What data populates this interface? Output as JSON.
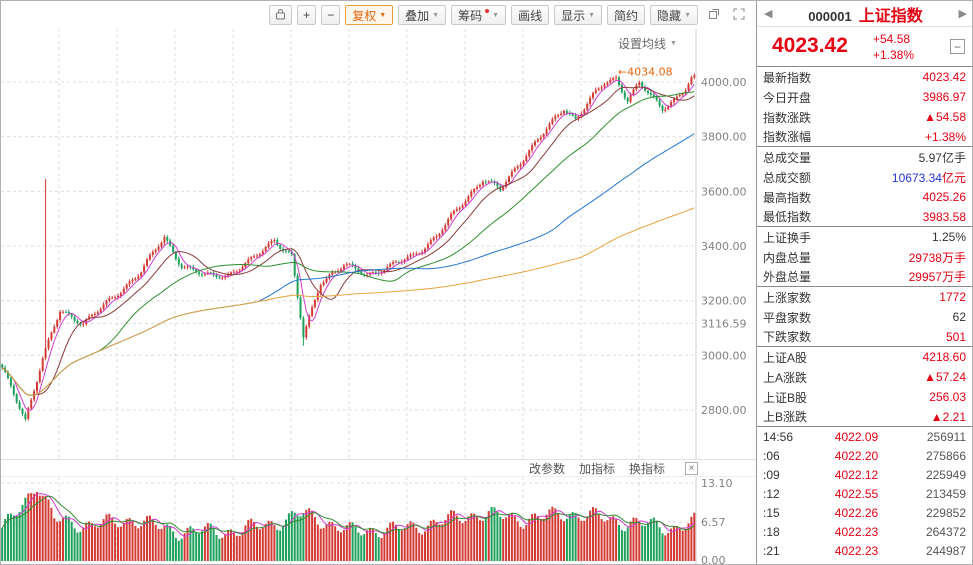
{
  "colors": {
    "up": "#d43a34",
    "down": "#1ca05a",
    "accent_orange": "#e8650f",
    "price_red": "#e60012",
    "blue_value": "#2635d9"
  },
  "toolbar": {
    "zoom_in": "+",
    "zoom_out": "−",
    "caret": "▼",
    "fuquan": "复权",
    "diejia": "叠加",
    "chouma": "筹码",
    "huaxian": "画线",
    "xianshi": "显示",
    "jianyue": "简约",
    "yincang": "隐藏"
  },
  "chart": {
    "ma_settings_label": "设置均线",
    "value_min": 2650,
    "value_max": 4150,
    "annotation": {
      "text": "←4034.08",
      "index": 212,
      "value": 4034.08
    },
    "y_axis": {
      "labels": [
        {
          "value": 4000,
          "text": "4000.00"
        },
        {
          "value": 3800,
          "text": "3800.00"
        },
        {
          "value": 3600,
          "text": "3600.00"
        },
        {
          "value": 3400,
          "text": "3400.00"
        },
        {
          "value": 3200,
          "text": "3200.00"
        },
        {
          "value": 3000,
          "text": "3000.00"
        },
        {
          "value": 2800,
          "text": "2800.00"
        }
      ],
      "special": {
        "value": 3116.59,
        "text": "3116.59"
      }
    }
  },
  "sub_chart": {
    "links": [
      "改参数",
      "加指标",
      "换指标"
    ],
    "close_label": "×",
    "y_labels": [
      {
        "value": 13.1,
        "text": "13.10"
      },
      {
        "value": 6.57,
        "text": "6.57"
      },
      {
        "value": 0,
        "text": "0.00"
      }
    ]
  },
  "chart_data": {
    "type": "candlestick",
    "symbol": "000001 上证指数",
    "count": 240,
    "last": 4023.42,
    "price_noise": 14,
    "up_color": "#d43a34",
    "down_color": "#1ca05a",
    "close_keypoints": [
      [
        0,
        2950
      ],
      [
        8,
        2765
      ],
      [
        14,
        2990
      ],
      [
        20,
        3160
      ],
      [
        28,
        3120
      ],
      [
        38,
        3205
      ],
      [
        48,
        3310
      ],
      [
        56,
        3430
      ],
      [
        62,
        3330
      ],
      [
        70,
        3290
      ],
      [
        78,
        3295
      ],
      [
        86,
        3345
      ],
      [
        94,
        3425
      ],
      [
        100,
        3360
      ],
      [
        104,
        3065
      ],
      [
        110,
        3270
      ],
      [
        118,
        3330
      ],
      [
        126,
        3295
      ],
      [
        134,
        3325
      ],
      [
        142,
        3365
      ],
      [
        150,
        3435
      ],
      [
        158,
        3545
      ],
      [
        166,
        3645
      ],
      [
        172,
        3605
      ],
      [
        180,
        3725
      ],
      [
        188,
        3825
      ],
      [
        194,
        3905
      ],
      [
        198,
        3865
      ],
      [
        203,
        3935
      ],
      [
        208,
        3995
      ],
      [
        212,
        4015
      ],
      [
        216,
        3935
      ],
      [
        220,
        3995
      ],
      [
        224,
        3945
      ],
      [
        228,
        3905
      ],
      [
        232,
        3935
      ],
      [
        236,
        3975
      ],
      [
        239,
        4023.42
      ]
    ],
    "spikes": [
      {
        "i": 15,
        "high": 3645
      },
      {
        "i": 104,
        "low": 3035
      }
    ],
    "mas": [
      {
        "window": 5,
        "color": "#d13cd1"
      },
      {
        "window": 13,
        "color": "#8b3a3a"
      },
      {
        "window": 34,
        "color": "#2f8f2f"
      },
      {
        "window": 89,
        "color": "#2277cc"
      },
      {
        "window": 200,
        "color": "#e8a33d"
      }
    ],
    "volume": {
      "ylim": [
        0,
        13.1
      ],
      "noise": 1.6,
      "keypoints": [
        [
          0,
          5
        ],
        [
          6,
          9
        ],
        [
          12,
          13
        ],
        [
          18,
          7
        ],
        [
          30,
          6
        ],
        [
          45,
          7
        ],
        [
          60,
          5
        ],
        [
          80,
          5
        ],
        [
          95,
          6.5
        ],
        [
          104,
          8
        ],
        [
          120,
          5
        ],
        [
          140,
          5.5
        ],
        [
          155,
          7
        ],
        [
          165,
          8
        ],
        [
          180,
          7
        ],
        [
          195,
          8
        ],
        [
          205,
          7.5
        ],
        [
          215,
          6.5
        ],
        [
          225,
          6
        ],
        [
          232,
          5.5
        ],
        [
          239,
          6.5
        ]
      ],
      "mas": [
        {
          "window": 5,
          "color": "#d13cd1"
        },
        {
          "window": 10,
          "color": "#2f8f2f"
        }
      ]
    }
  },
  "quote": {
    "prev_label": "◀",
    "next_label": "▶",
    "code": "000001",
    "name": "上证指数",
    "price": "4023.42",
    "change": "+54.58",
    "change_pct": "+1.38%",
    "minimize_label": "−",
    "stats": [
      {
        "label": "最新指数",
        "value": "4023.42",
        "vcolor": "red"
      },
      {
        "label": "今日开盘",
        "value": "3986.97",
        "vcolor": "red"
      },
      {
        "label": "指数涨跌",
        "value": "▲54.58",
        "vcolor": "red"
      },
      {
        "label": "指数涨幅",
        "value": "+1.38%",
        "vcolor": "red",
        "group_end": true
      },
      {
        "label": "总成交量",
        "value": "5.97",
        "vcolor": "black",
        "unit": "亿手",
        "ucolor": "black"
      },
      {
        "label": "总成交额",
        "value": "10673.34",
        "vcolor": "blue",
        "unit": "亿元",
        "ucolor": "red"
      },
      {
        "label": "最高指数",
        "value": "4025.26",
        "vcolor": "red"
      },
      {
        "label": "最低指数",
        "value": "3983.58",
        "vcolor": "red",
        "group_end": true
      },
      {
        "label": "上证换手",
        "value": "1.25%",
        "vcolor": "black"
      },
      {
        "label": "内盘总量",
        "value": "29738",
        "vcolor": "red",
        "unit": "万手",
        "ucolor": "red"
      },
      {
        "label": "外盘总量",
        "value": "29957",
        "vcolor": "red",
        "unit": "万手",
        "ucolor": "red",
        "group_end": true
      },
      {
        "label": "上涨家数",
        "value": "1772",
        "vcolor": "red"
      },
      {
        "label": "平盘家数",
        "value": "62",
        "vcolor": "black"
      },
      {
        "label": "下跌家数",
        "value": "501",
        "vcolor": "red",
        "group_end": true
      },
      {
        "label": "上证A股",
        "value": "4218.60",
        "vcolor": "red"
      },
      {
        "label": "上A涨跌",
        "value": "▲57.24",
        "vcolor": "red"
      },
      {
        "label": "上证B股",
        "value": "256.03",
        "vcolor": "red"
      },
      {
        "label": "上B涨跌",
        "value": "▲2.21",
        "vcolor": "red",
        "group_end": true
      }
    ],
    "ticks": [
      {
        "time": "14:56",
        "price": "4022.09",
        "vol": "256911"
      },
      {
        "time": ":06",
        "price": "4022.20",
        "vol": "275866"
      },
      {
        "time": ":09",
        "price": "4022.12",
        "vol": "225949"
      },
      {
        "time": ":12",
        "price": "4022.55",
        "vol": "213459"
      },
      {
        "time": ":15",
        "price": "4022.26",
        "vol": "229852"
      },
      {
        "time": ":18",
        "price": "4022.23",
        "vol": "264372"
      },
      {
        "time": ":21",
        "price": "4022.23",
        "vol": "244987"
      }
    ]
  }
}
